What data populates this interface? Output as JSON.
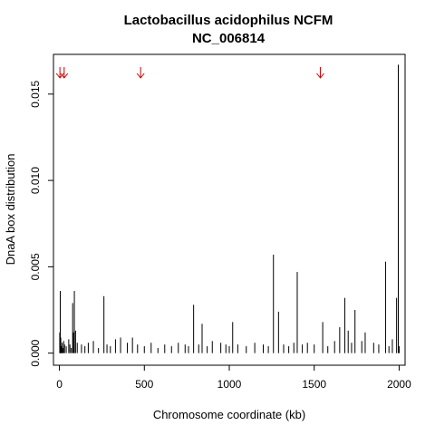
{
  "chart_data": {
    "type": "bar",
    "title": "Lactobacillus acidophilus NCFM",
    "subtitle": "NC_006814",
    "xlabel": "Chromosome coordinate (kb)",
    "ylabel": "DnaA box distribution",
    "xlim": [
      -35,
      2035
    ],
    "ylim": [
      -0.0007,
      0.0173
    ],
    "x_ticks": [
      0,
      500,
      1000,
      1500,
      2000
    ],
    "x_tick_labels": [
      "0",
      "500",
      "1000",
      "1500",
      "2000"
    ],
    "y_ticks": [
      0.0,
      0.005,
      0.01,
      0.015
    ],
    "y_tick_labels": [
      "0.000",
      "0.005",
      "0.010",
      "0.015"
    ],
    "grid": false,
    "bar_color": "#000000",
    "marker_color": "#cc0000",
    "arrow_markers_kb": [
      3,
      28,
      478,
      1536
    ],
    "spikes": {
      "x_kb": [
        2,
        5,
        8,
        12,
        16,
        20,
        25,
        30,
        40,
        55,
        62,
        70,
        78,
        82,
        88,
        95,
        105,
        130,
        150,
        170,
        200,
        230,
        262,
        280,
        300,
        330,
        360,
        400,
        430,
        460,
        500,
        540,
        580,
        620,
        660,
        700,
        740,
        760,
        790,
        820,
        840,
        870,
        900,
        950,
        980,
        1000,
        1020,
        1050,
        1100,
        1150,
        1200,
        1230,
        1260,
        1290,
        1320,
        1350,
        1380,
        1400,
        1430,
        1460,
        1500,
        1550,
        1580,
        1620,
        1650,
        1680,
        1700,
        1720,
        1740,
        1780,
        1800,
        1850,
        1880,
        1920,
        1940,
        1960,
        1985,
        1995,
        2000
      ],
      "values": [
        0.0012,
        0.0036,
        0.0009,
        0.0004,
        0.0006,
        0.0003,
        0.0007,
        0.0005,
        0.0004,
        0.0008,
        0.0005,
        0.0003,
        0.0029,
        0.0012,
        0.0036,
        0.0013,
        0.0006,
        0.0005,
        0.0004,
        0.0006,
        0.0007,
        0.0003,
        0.0033,
        0.0005,
        0.0004,
        0.0008,
        0.0009,
        0.0006,
        0.0009,
        0.0005,
        0.0004,
        0.0006,
        0.0003,
        0.0005,
        0.0004,
        0.0006,
        0.0005,
        0.0004,
        0.0028,
        0.0005,
        0.0017,
        0.0004,
        0.0007,
        0.0006,
        0.0005,
        0.0004,
        0.0018,
        0.0005,
        0.0004,
        0.0006,
        0.0005,
        0.0004,
        0.0057,
        0.0024,
        0.0005,
        0.0004,
        0.0006,
        0.0047,
        0.0005,
        0.0006,
        0.0005,
        0.0018,
        0.0004,
        0.0007,
        0.0015,
        0.0032,
        0.0013,
        0.0006,
        0.0025,
        0.0007,
        0.0012,
        0.0006,
        0.0005,
        0.0053,
        0.0004,
        0.0008,
        0.0032,
        0.0167,
        0.0004
      ]
    }
  }
}
